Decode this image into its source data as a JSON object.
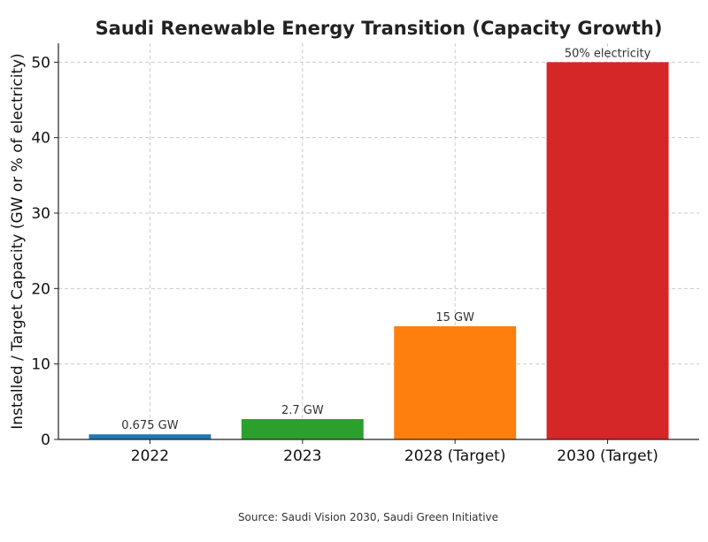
{
  "chart_data": {
    "type": "bar",
    "title": "Saudi Renewable Energy Transition (Capacity Growth)",
    "xlabel": "",
    "ylabel": "Installed / Target Capacity (GW or % of electricity)",
    "categories": [
      "2022",
      "2023",
      "2028 (Target)",
      "2030 (Target)"
    ],
    "values": [
      0.675,
      2.7,
      15,
      50
    ],
    "data_labels": [
      "0.675 GW",
      "2.7 GW",
      "15 GW",
      "50% electricity"
    ],
    "colors": [
      "#1f77b4",
      "#2ca02c",
      "#ff7f0e",
      "#d62728"
    ],
    "ylim": [
      0,
      52.5
    ],
    "yticks": [
      0,
      10,
      20,
      30,
      40,
      50
    ],
    "grid": true,
    "legend": "none",
    "footnote": "Source: Saudi Vision 2030, Saudi Green Initiative"
  }
}
